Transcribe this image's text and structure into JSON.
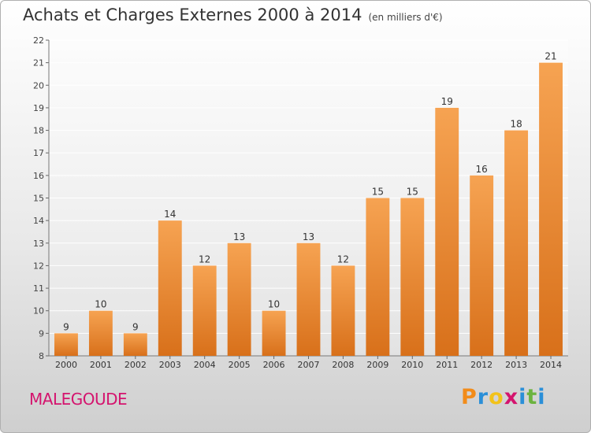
{
  "title": "Achats et Charges Externes 2000 à 2014",
  "subtitle": "(en milliers d'€)",
  "commune": "MALEGOUDE",
  "logo": {
    "text": "Proxiti",
    "letters": [
      "P",
      "r",
      "o",
      "x",
      "i",
      "t",
      "i"
    ],
    "colors": [
      "#f28c1a",
      "#2a8fd8",
      "#f2c21a",
      "#d4146e",
      "#2a8fd8",
      "#6cb33f",
      "#2a8fd8"
    ]
  },
  "colors": {
    "bar_light": "#f6a352",
    "bar_dark": "#d8701a",
    "commune_text": "#d4146e"
  },
  "chart_data": {
    "type": "bar",
    "categories": [
      "2000",
      "2001",
      "2002",
      "2003",
      "2004",
      "2005",
      "2006",
      "2007",
      "2008",
      "2009",
      "2010",
      "2011",
      "2012",
      "2013",
      "2014"
    ],
    "values": [
      9,
      10,
      9,
      14,
      12,
      13,
      10,
      13,
      12,
      15,
      15,
      19,
      16,
      18,
      21
    ],
    "ylim": [
      8,
      22
    ],
    "yticks": [
      8,
      9,
      10,
      11,
      12,
      13,
      14,
      15,
      16,
      17,
      18,
      19,
      20,
      21,
      22
    ],
    "grid": true,
    "data_labels": true
  }
}
